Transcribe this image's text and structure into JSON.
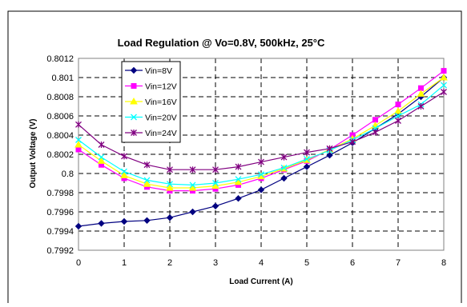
{
  "chart_data": {
    "type": "line",
    "title": "Load Regulation @ Vo=0.8V, 500kHz, 25°C",
    "xlabel": "Load Current (A)",
    "ylabel": "Output Voltage (V)",
    "xlim": [
      0,
      8
    ],
    "ylim": [
      0.7992,
      0.8012
    ],
    "x_ticks": [
      "0",
      "1",
      "2",
      "3",
      "4",
      "5",
      "6",
      "7",
      "8"
    ],
    "y_ticks": [
      "0.7992",
      "0.7994",
      "0.7996",
      "0.7998",
      "0.8",
      "0.8002",
      "0.8004",
      "0.8006",
      "0.8008",
      "0.801",
      "0.8012"
    ],
    "x": [
      0,
      0.5,
      1,
      1.5,
      2,
      2.5,
      3,
      3.5,
      4,
      4.5,
      5,
      5.5,
      6,
      6.5,
      7,
      7.5,
      8
    ],
    "grid": true,
    "legend_position": "top-left",
    "series": [
      {
        "name": "Vin=8V",
        "color": "#000080",
        "marker": "diamond",
        "values": [
          0.79945,
          0.79948,
          0.7995,
          0.79951,
          0.79954,
          0.7996,
          0.79966,
          0.79974,
          0.79983,
          0.79995,
          0.80007,
          0.80019,
          0.80032,
          0.80047,
          0.80062,
          0.8008,
          0.801
        ]
      },
      {
        "name": "Vin=12V",
        "color": "#ff00ff",
        "marker": "square",
        "values": [
          0.80025,
          0.80009,
          0.79995,
          0.79986,
          0.79982,
          0.79982,
          0.79984,
          0.79988,
          0.79995,
          0.80004,
          0.80013,
          0.80025,
          0.8004,
          0.80056,
          0.80072,
          0.80089,
          0.80107
        ]
      },
      {
        "name": "Vin=16V",
        "color": "#ffff00",
        "marker": "triangle",
        "values": [
          0.8003,
          0.80013,
          0.79998,
          0.79989,
          0.79985,
          0.79985,
          0.79987,
          0.79991,
          0.79997,
          0.80005,
          0.80014,
          0.80025,
          0.80036,
          0.8005,
          0.80065,
          0.80083,
          0.801
        ]
      },
      {
        "name": "Vin=20V",
        "color": "#00ffff",
        "marker": "x",
        "values": [
          0.80035,
          0.80017,
          0.80002,
          0.79993,
          0.79989,
          0.79988,
          0.7999,
          0.79994,
          0.79999,
          0.80006,
          0.80015,
          0.80024,
          0.80035,
          0.80047,
          0.8006,
          0.80072,
          0.80092
        ]
      },
      {
        "name": "Vin=24V",
        "color": "#800080",
        "marker": "star",
        "values": [
          0.80051,
          0.8003,
          0.80018,
          0.80009,
          0.80004,
          0.80004,
          0.80004,
          0.80007,
          0.80012,
          0.80017,
          0.80022,
          0.80026,
          0.80033,
          0.80043,
          0.80055,
          0.8007,
          0.80085
        ]
      }
    ]
  }
}
